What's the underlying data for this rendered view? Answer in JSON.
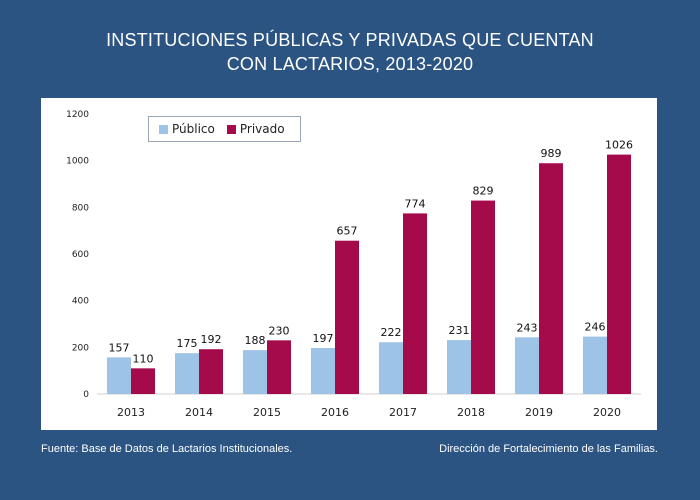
{
  "title_lines": [
    "INSTITUCIONES PÚBLICAS Y PRIVADAS QUE CUENTAN",
    "CON LACTARIOS, 2013-2020"
  ],
  "footer": {
    "source": "Fuente: Base de Datos de Lactarios Institucionales.",
    "credit": "Dirección de Fortalecimiento de las Familias."
  },
  "colors": {
    "background": "#2b5483",
    "publico": "#9dc3e6",
    "privado": "#a50a4a"
  },
  "chart_data": {
    "type": "bar",
    "title": "INSTITUCIONES PÚBLICAS Y PRIVADAS QUE CUENTAN CON LACTARIOS, 2013-2020",
    "categories": [
      "2013",
      "2014",
      "2015",
      "2016",
      "2017",
      "2018",
      "2019",
      "2020"
    ],
    "series": [
      {
        "name": "Público",
        "values": [
          157,
          175,
          188,
          197,
          222,
          231,
          243,
          246
        ]
      },
      {
        "name": "Privado",
        "values": [
          110,
          192,
          230,
          657,
          774,
          829,
          989,
          1026
        ]
      }
    ],
    "ylim": [
      0,
      1200
    ],
    "yticks": [
      "0",
      "200",
      "400",
      "600",
      "800",
      "1000",
      "1200"
    ],
    "grid": false,
    "legend_position": "top-left"
  }
}
